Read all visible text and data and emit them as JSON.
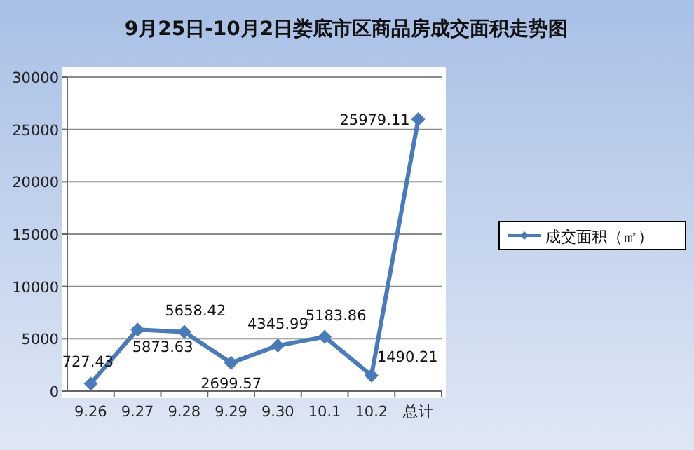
{
  "chart_data": {
    "type": "line",
    "title": "9月25日-10月2日娄底市区商品房成交面积走势图",
    "categories": [
      "9.26",
      "9.27",
      "9.28",
      "9.29",
      "9.30",
      "10.1",
      "10.2",
      "总计"
    ],
    "series": [
      {
        "name": "成交面积（㎡）",
        "color": "#4a7ab8",
        "values": [
          727.43,
          5873.63,
          5658.42,
          2699.57,
          4345.99,
          5183.86,
          1490.21,
          25979.11
        ]
      }
    ],
    "ylim": [
      0,
      30000
    ],
    "yticks": [
      0,
      5000,
      10000,
      15000,
      20000,
      25000,
      30000
    ],
    "grid": "y",
    "legend": "right",
    "marker": "diamond",
    "line_style": "solid",
    "data_labels": true
  }
}
